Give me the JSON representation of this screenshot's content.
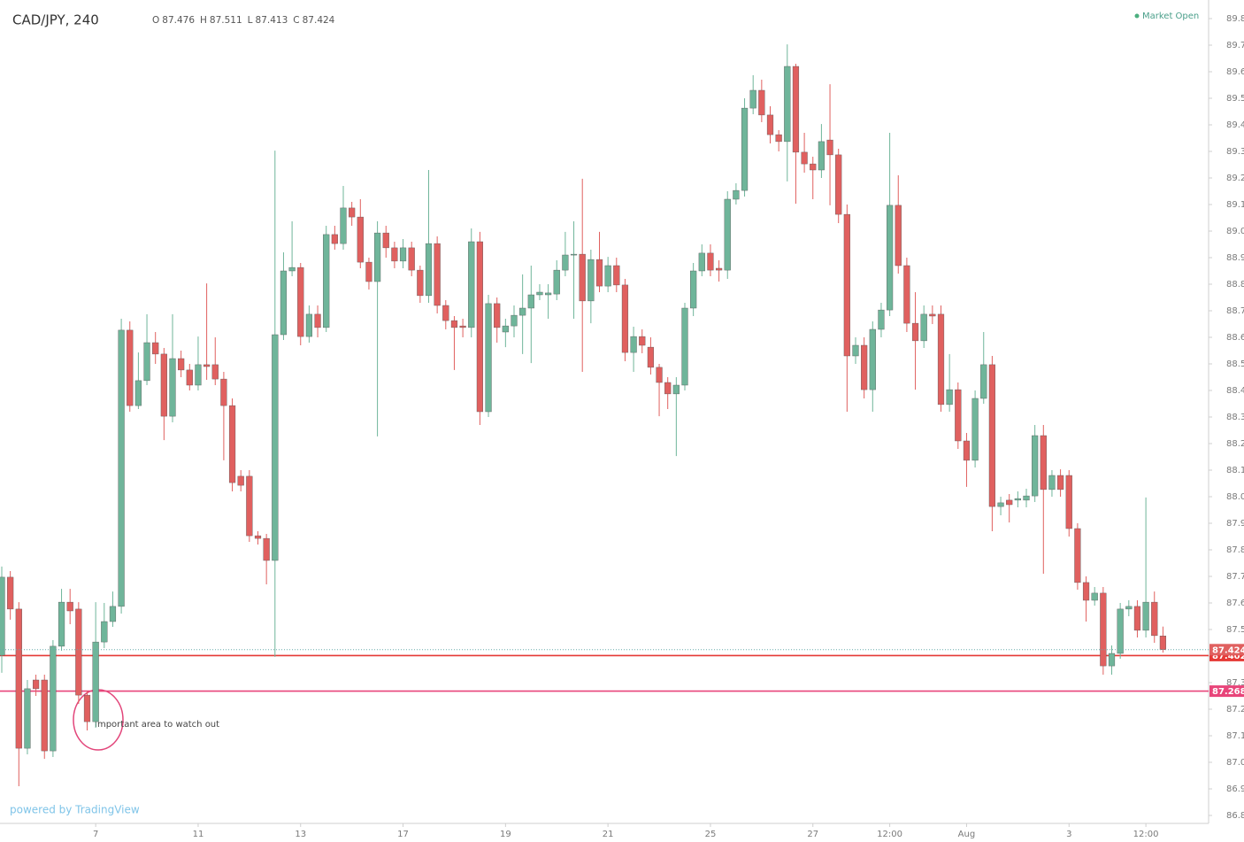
{
  "chart_data": {
    "type": "candlestick",
    "title": "CAD/JPY, 240",
    "ohlc_labels": [
      "O",
      "H",
      "L",
      "C"
    ],
    "status": "Market Open",
    "branding": "powered by TradingView",
    "annotation": "Important area to watch out",
    "up_color": "#6fb59a",
    "down_color": "#e0605f",
    "grid": false,
    "categories": [
      null,
      null,
      null,
      null,
      null,
      null,
      null,
      null,
      null,
      null,
      null,
      "7",
      null,
      null,
      null,
      null,
      null,
      null,
      null,
      null,
      null,
      null,
      null,
      "11",
      null,
      null,
      null,
      null,
      null,
      null,
      null,
      null,
      null,
      null,
      null,
      "13",
      null,
      null,
      null,
      null,
      null,
      null,
      null,
      null,
      null,
      null,
      null,
      "17",
      null,
      null,
      null,
      null,
      null,
      null,
      null,
      null,
      null,
      null,
      null,
      "19",
      null,
      null,
      null,
      null,
      null,
      null,
      null,
      null,
      null,
      null,
      null,
      "21",
      null,
      null,
      null,
      null,
      null,
      null,
      null,
      null,
      null,
      null,
      null,
      "25",
      null,
      null,
      null,
      null,
      null,
      null,
      null,
      null,
      null,
      null,
      null,
      "27",
      null,
      null,
      null,
      null,
      null,
      null,
      null,
      null,
      "12:00",
      null,
      null,
      null,
      null,
      null,
      null,
      null,
      null,
      "Aug",
      null,
      null,
      null,
      null,
      null,
      null,
      null,
      null,
      null,
      null,
      null,
      "3",
      null,
      null,
      null,
      null,
      null,
      null,
      null,
      null,
      "12:00",
      null,
      null
    ],
    "open": [
      87.403,
      87.697,
      87.577,
      87.053,
      87.31,
      87.31,
      87.043,
      87.437,
      87.603,
      87.577,
      87.253,
      87.153,
      87.453,
      87.53,
      87.587,
      88.627,
      88.343,
      88.437,
      88.58,
      88.537,
      88.303,
      88.52,
      88.477,
      88.42,
      88.497,
      88.497,
      88.443,
      88.343,
      88.077,
      88.077,
      87.853,
      87.843,
      87.76,
      88.61,
      88.85,
      88.863,
      88.603,
      88.687,
      88.637,
      88.987,
      88.953,
      89.087,
      89.053,
      88.883,
      88.81,
      88.993,
      88.937,
      88.887,
      88.937,
      88.853,
      88.757,
      88.953,
      88.72,
      88.663,
      88.643,
      88.637,
      88.96,
      88.32,
      88.727,
      88.62,
      88.643,
      88.683,
      88.71,
      88.76,
      88.76,
      88.763,
      88.853,
      88.91,
      88.913,
      88.737,
      88.893,
      88.793,
      88.87,
      88.797,
      88.543,
      88.603,
      88.563,
      88.487,
      88.43,
      88.387,
      88.42,
      88.71,
      88.85,
      88.917,
      88.86,
      88.853,
      89.12,
      89.153,
      89.463,
      89.53,
      89.437,
      89.363,
      89.337,
      89.62,
      89.297,
      89.253,
      89.23,
      89.343,
      89.287,
      89.063,
      88.53,
      88.57,
      88.403,
      88.63,
      88.703,
      89.097,
      88.87,
      88.653,
      88.587,
      88.687,
      88.687,
      88.347,
      88.403,
      88.21,
      88.137,
      88.37,
      88.497,
      87.963,
      87.987,
      87.987,
      87.987,
      88.003,
      88.23,
      88.027,
      88.08,
      88.08,
      87.88,
      87.677,
      87.61,
      87.637,
      87.363,
      87.41,
      87.577,
      87.587,
      87.497,
      87.603,
      87.476
    ],
    "high": [
      87.737,
      87.72,
      87.603,
      87.31,
      87.33,
      87.33,
      87.46,
      87.653,
      87.653,
      87.603,
      87.27,
      87.603,
      87.6,
      87.643,
      88.67,
      88.66,
      88.543,
      88.687,
      88.62,
      88.56,
      88.687,
      88.55,
      88.5,
      88.603,
      88.803,
      88.6,
      88.47,
      88.37,
      88.1,
      88.1,
      87.87,
      87.86,
      89.303,
      88.92,
      89.037,
      88.88,
      88.72,
      88.72,
      89.02,
      89.02,
      89.17,
      89.11,
      89.12,
      88.9,
      89.037,
      89.02,
      88.96,
      88.97,
      88.96,
      88.87,
      89.23,
      88.98,
      88.74,
      88.68,
      88.67,
      89.01,
      88.997,
      88.76,
      88.75,
      88.67,
      88.72,
      88.837,
      88.87,
      88.8,
      88.8,
      88.89,
      88.997,
      89.037,
      89.197,
      88.93,
      88.997,
      88.903,
      88.9,
      88.82,
      88.64,
      88.63,
      88.6,
      88.5,
      88.45,
      88.45,
      88.73,
      88.88,
      88.95,
      88.95,
      88.89,
      89.15,
      89.18,
      89.5,
      89.587,
      89.57,
      89.47,
      89.38,
      89.703,
      89.63,
      89.37,
      89.28,
      89.403,
      89.553,
      89.31,
      89.1,
      88.6,
      88.6,
      88.66,
      88.73,
      89.37,
      89.21,
      88.9,
      88.77,
      88.72,
      88.72,
      88.72,
      88.537,
      88.43,
      88.24,
      88.4,
      88.62,
      88.53,
      88.0,
      88.01,
      88.02,
      88.03,
      88.27,
      88.27,
      88.1,
      88.103,
      88.1,
      87.9,
      87.7,
      87.66,
      87.66,
      87.44,
      87.6,
      87.61,
      87.61,
      87.997,
      87.643,
      87.511
    ],
    "low": [
      87.337,
      87.537,
      86.91,
      87.03,
      87.25,
      87.013,
      87.02,
      87.42,
      87.52,
      87.22,
      87.12,
      87.13,
      87.43,
      87.51,
      87.56,
      88.32,
      88.33,
      88.42,
      88.5,
      88.213,
      88.28,
      88.45,
      88.4,
      88.4,
      88.44,
      88.42,
      88.137,
      88.02,
      88.02,
      87.83,
      87.82,
      87.67,
      87.397,
      88.59,
      88.83,
      88.57,
      88.58,
      88.6,
      88.62,
      88.93,
      88.93,
      89.02,
      88.86,
      88.78,
      88.227,
      88.9,
      88.86,
      88.86,
      88.83,
      88.73,
      88.73,
      88.69,
      88.63,
      88.477,
      88.6,
      88.6,
      88.27,
      88.3,
      88.58,
      88.563,
      88.6,
      88.537,
      88.503,
      88.74,
      88.67,
      88.74,
      88.83,
      88.67,
      88.47,
      88.653,
      88.77,
      88.77,
      88.77,
      88.51,
      88.47,
      88.54,
      88.46,
      88.303,
      88.33,
      88.153,
      88.4,
      88.68,
      88.83,
      88.83,
      88.81,
      88.82,
      89.1,
      89.13,
      89.44,
      89.41,
      89.33,
      89.3,
      89.187,
      89.103,
      89.22,
      89.12,
      89.2,
      89.097,
      89.03,
      88.32,
      88.5,
      88.37,
      88.32,
      88.6,
      88.68,
      88.84,
      88.62,
      88.403,
      88.56,
      88.65,
      88.32,
      88.32,
      88.18,
      88.037,
      88.11,
      88.35,
      87.87,
      87.93,
      87.903,
      87.96,
      87.96,
      87.98,
      87.71,
      88.0,
      88.0,
      87.85,
      87.65,
      87.53,
      87.59,
      87.33,
      87.33,
      87.39,
      87.55,
      87.47,
      87.47,
      87.45,
      87.413
    ],
    "close": [
      87.697,
      87.577,
      87.053,
      87.277,
      87.277,
      87.043,
      87.437,
      87.603,
      87.57,
      87.253,
      87.153,
      87.453,
      87.53,
      87.587,
      88.627,
      88.343,
      88.437,
      88.58,
      88.537,
      88.303,
      88.52,
      88.477,
      88.42,
      88.497,
      88.49,
      88.443,
      88.343,
      88.053,
      88.043,
      87.853,
      87.843,
      87.76,
      88.61,
      88.85,
      88.863,
      88.603,
      88.687,
      88.637,
      88.987,
      88.953,
      89.087,
      89.053,
      88.883,
      88.81,
      88.993,
      88.937,
      88.887,
      88.937,
      88.853,
      88.757,
      88.953,
      88.72,
      88.663,
      88.637,
      88.637,
      88.96,
      88.32,
      88.727,
      88.637,
      88.643,
      88.683,
      88.71,
      88.76,
      88.77,
      88.767,
      88.853,
      88.91,
      88.913,
      88.737,
      88.893,
      88.793,
      88.87,
      88.797,
      88.543,
      88.603,
      88.57,
      88.487,
      88.43,
      88.387,
      88.42,
      88.71,
      88.85,
      88.917,
      88.853,
      88.853,
      89.12,
      89.153,
      89.463,
      89.53,
      89.437,
      89.363,
      89.337,
      89.62,
      89.297,
      89.253,
      89.23,
      89.337,
      89.287,
      89.063,
      88.53,
      88.57,
      88.403,
      88.63,
      88.703,
      89.097,
      88.87,
      88.653,
      88.587,
      88.687,
      88.68,
      88.347,
      88.403,
      88.21,
      88.137,
      88.37,
      88.497,
      87.963,
      87.977,
      87.97,
      87.993,
      88.003,
      88.23,
      88.027,
      88.08,
      88.027,
      87.88,
      87.677,
      87.61,
      87.637,
      87.363,
      87.41,
      87.577,
      87.587,
      87.497,
      87.603,
      87.477,
      87.424
    ],
    "price_lines": [
      {
        "value": 87.402,
        "color": "#e53935"
      },
      {
        "value": 87.268,
        "color": "#e8457a"
      }
    ],
    "ylim": [
      86.77,
      89.87
    ],
    "yticks": [
      {
        "value": 86.8,
        "label": "86.800"
      },
      {
        "value": 86.9,
        "label": "86.900"
      },
      {
        "value": 87.0,
        "label": "87.000"
      },
      {
        "value": 87.1,
        "label": "87.100"
      },
      {
        "value": 87.2,
        "label": "87.200"
      },
      {
        "value": 87.3,
        "label": "87.300"
      },
      {
        "value": 87.4,
        "label": "87.400"
      },
      {
        "value": 87.5,
        "label": "87.500"
      },
      {
        "value": 87.6,
        "label": "87.600"
      },
      {
        "value": 87.7,
        "label": "87.700"
      },
      {
        "value": 87.8,
        "label": "87.800"
      },
      {
        "value": 87.9,
        "label": "87.900"
      },
      {
        "value": 88.0,
        "label": "88.000"
      },
      {
        "value": 88.1,
        "label": "88.100"
      },
      {
        "value": 88.2,
        "label": "88.200"
      },
      {
        "value": 88.3,
        "label": "88.300"
      },
      {
        "value": 88.4,
        "label": "88.400"
      },
      {
        "value": 88.5,
        "label": "88.500"
      },
      {
        "value": 88.6,
        "label": "88.600"
      },
      {
        "value": 88.7,
        "label": "88.700"
      },
      {
        "value": 88.8,
        "label": "88.800"
      },
      {
        "value": 88.9,
        "label": "88.900"
      },
      {
        "value": 89.0,
        "label": "89.000"
      },
      {
        "value": 89.1,
        "label": "89.100"
      },
      {
        "value": 89.2,
        "label": "89.200"
      },
      {
        "value": 89.3,
        "label": "89.300"
      },
      {
        "value": 89.4,
        "label": "89.400"
      },
      {
        "value": 89.5,
        "label": "89.500"
      },
      {
        "value": 89.6,
        "label": "89.600"
      },
      {
        "value": 89.7,
        "label": "89.700"
      },
      {
        "value": 89.8,
        "label": "89.800"
      }
    ]
  }
}
